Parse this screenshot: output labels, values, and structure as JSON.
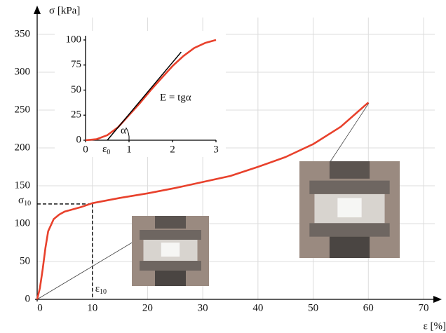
{
  "chart_data": [
    {
      "type": "line",
      "y_label": "σ [kPa]",
      "x_label": "ε [%]",
      "xlim": [
        0,
        70
      ],
      "xticks": [
        0,
        10,
        20,
        30,
        40,
        50,
        60,
        70
      ],
      "ylim": [
        0,
        350
      ],
      "yticks": [
        0,
        50,
        100,
        150,
        200,
        250,
        300,
        350
      ],
      "grid": true,
      "series": [
        {
          "color": "#e8412c",
          "x": [
            0,
            0.5,
            1,
            1.5,
            2,
            3,
            4,
            5,
            6,
            8,
            10,
            15,
            20,
            25,
            30,
            35,
            40,
            45,
            50,
            55,
            60
          ],
          "values": [
            0,
            15,
            40,
            68,
            90,
            106,
            112,
            116,
            118,
            122,
            127,
            134,
            140,
            147,
            155,
            163,
            175,
            188,
            205,
            228,
            260
          ]
        }
      ],
      "guide": {
        "x": 10,
        "y": 126
      },
      "annotations": [
        {
          "symbol": "σ",
          "sub": "10"
        },
        {
          "symbol": "ε",
          "sub": "10"
        }
      ]
    },
    {
      "type": "line",
      "xlim": [
        0,
        3
      ],
      "xticks": [
        0,
        1,
        2,
        3
      ],
      "ylim": [
        0,
        100
      ],
      "yticks": [
        0,
        25,
        50,
        75,
        100
      ],
      "grid": false,
      "series": [
        {
          "color": "#e8412c",
          "x": [
            0,
            0.25,
            0.5,
            0.75,
            1,
            1.25,
            1.5,
            1.75,
            2,
            2.25,
            2.5,
            2.75,
            3
          ],
          "values": [
            0,
            1,
            5,
            13,
            25,
            37,
            50,
            62,
            74,
            84,
            92,
            97,
            100
          ]
        },
        {
          "color": "#000000",
          "x": [
            0.5,
            2.2
          ],
          "values": [
            0,
            88
          ]
        }
      ],
      "annotations": [
        {
          "text": "E = tgα"
        },
        {
          "text": "α"
        },
        {
          "symbol": "ε",
          "sub": "0"
        }
      ]
    }
  ]
}
